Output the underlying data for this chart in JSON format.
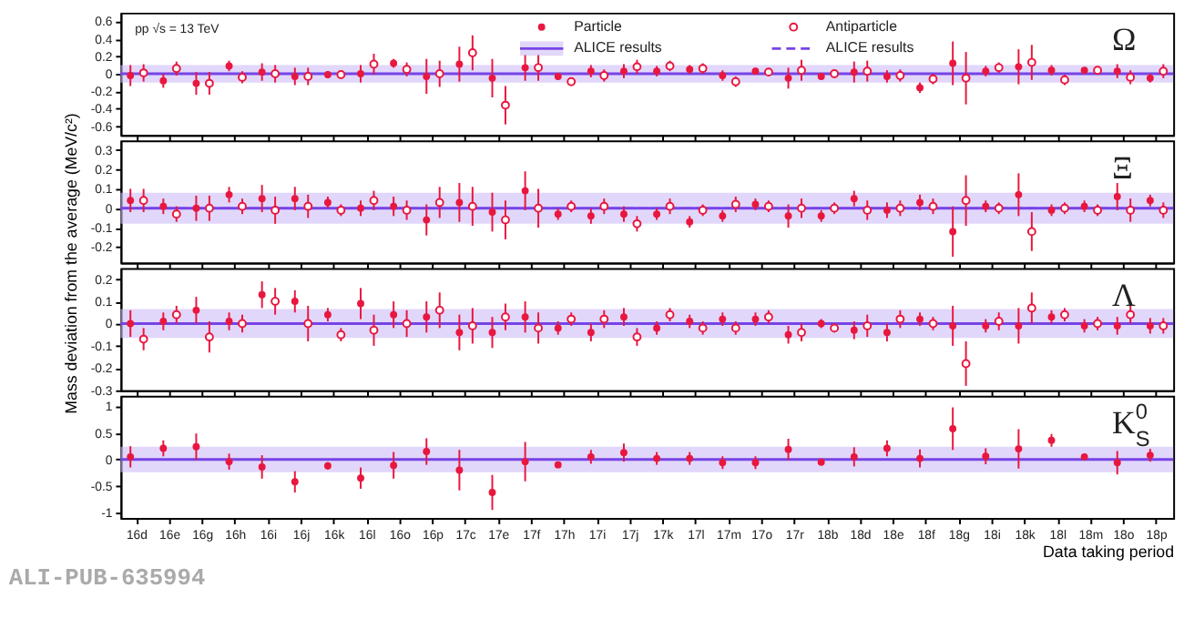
{
  "chart_data": [
    {
      "type": "scatter",
      "title": "Ω",
      "categories": [
        null,
        null,
        null,
        null,
        null,
        null,
        null,
        null,
        null,
        null,
        null,
        null,
        null,
        null,
        null,
        null,
        null,
        null,
        null,
        null,
        null,
        null,
        null,
        null,
        null,
        null,
        null,
        null,
        null,
        null,
        null,
        null
      ],
      "series": [
        {
          "name": "Particle",
          "color": "#e8173f",
          "values": [
            -0.02,
            -0.08,
            -0.11,
            0.09,
            0.02,
            -0.03,
            -0.01,
            0.0,
            0.12,
            -0.03,
            0.11,
            -0.05,
            0.07,
            -0.03,
            0.03,
            0.03,
            0.03,
            0.05,
            -0.02,
            0.03,
            -0.05,
            -0.03,
            0.02,
            -0.03,
            -0.16,
            0.12,
            0.03,
            0.08,
            0.04,
            0.04,
            0.03,
            -0.05
          ],
          "errors": [
            0.12,
            0.08,
            0.13,
            0.06,
            0.1,
            0.1,
            0.04,
            0.1,
            0.05,
            0.2,
            0.2,
            0.22,
            0.15,
            0.04,
            0.07,
            0.08,
            0.06,
            0.05,
            0.06,
            0.04,
            0.12,
            0.04,
            0.12,
            0.07,
            0.06,
            0.25,
            0.06,
            0.2,
            0.06,
            0.03,
            0.08,
            0.05
          ]
        },
        {
          "name": "Antiparticle",
          "color": "#e8173f",
          "values": [
            0.01,
            0.06,
            -0.11,
            -0.04,
            0.0,
            -0.03,
            -0.01,
            0.11,
            0.05,
            0.0,
            0.24,
            -0.36,
            0.07,
            -0.09,
            -0.02,
            0.08,
            0.09,
            0.06,
            -0.09,
            0.02,
            0.04,
            0.0,
            0.03,
            -0.02,
            -0.06,
            -0.05,
            0.07,
            0.13,
            -0.07,
            0.04,
            -0.04,
            0.03
          ],
          "errors": [
            0.1,
            0.08,
            0.13,
            0.07,
            0.1,
            0.1,
            0.04,
            0.12,
            0.08,
            0.15,
            0.2,
            0.22,
            0.15,
            0.04,
            0.07,
            0.08,
            0.06,
            0.06,
            0.06,
            0.04,
            0.12,
            0.04,
            0.12,
            0.07,
            0.06,
            0.3,
            0.06,
            0.2,
            0.06,
            0.03,
            0.08,
            0.08
          ]
        }
      ],
      "ylim": [
        -0.7,
        0.7
      ],
      "yticks": [
        -0.6,
        -0.4,
        -0.2,
        0,
        0.2,
        0.4,
        0.6
      ],
      "ref_lines": [
        {
          "axis": "y",
          "value": 0,
          "label": "ALICE results",
          "color": "#7744e6",
          "line_style": "solid"
        },
        {
          "axis": "y",
          "value": 0,
          "label": "ALICE results",
          "color": "#7744e6",
          "line_style": "dashed"
        }
      ],
      "bands": [
        {
          "axis": "y",
          "from": -0.1,
          "to": 0.1,
          "color": "#cdbdf7"
        }
      ],
      "marker": "circle",
      "legend": "top",
      "tick_labels": "y",
      "annotations": [
        "pp √s = 13 TeV"
      ]
    },
    {
      "type": "scatter",
      "title": "Ξ",
      "categories": [
        null,
        null,
        null,
        null,
        null,
        null,
        null,
        null,
        null,
        null,
        null,
        null,
        null,
        null,
        null,
        null,
        null,
        null,
        null,
        null,
        null,
        null,
        null,
        null,
        null,
        null,
        null,
        null,
        null,
        null,
        null,
        null
      ],
      "series": [
        {
          "color": "#e8173f",
          "values": [
            0.04,
            0.01,
            0.0,
            0.07,
            0.05,
            0.05,
            0.03,
            0.0,
            0.01,
            -0.06,
            0.03,
            -0.02,
            0.09,
            -0.03,
            -0.04,
            -0.03,
            -0.03,
            -0.07,
            -0.04,
            0.02,
            -0.04,
            -0.04,
            0.05,
            -0.01,
            0.03,
            -0.12,
            0.01,
            0.07,
            -0.01,
            0.01,
            0.06,
            0.04
          ],
          "errors": [
            0.06,
            0.04,
            0.065,
            0.04,
            0.07,
            0.06,
            0.03,
            0.04,
            0.05,
            0.08,
            0.1,
            0.1,
            0.1,
            0.03,
            0.04,
            0.04,
            0.03,
            0.03,
            0.03,
            0.03,
            0.06,
            0.03,
            0.04,
            0.04,
            0.04,
            0.13,
            0.03,
            0.11,
            0.03,
            0.03,
            0.07,
            0.03
          ]
        },
        {
          "color": "#e8173f",
          "values": [
            0.04,
            -0.03,
            0.0,
            0.01,
            -0.01,
            0.01,
            -0.01,
            0.04,
            -0.01,
            0.03,
            0.01,
            -0.06,
            0.0,
            0.01,
            0.01,
            -0.08,
            0.01,
            -0.01,
            0.02,
            0.01,
            0.0,
            0.0,
            -0.01,
            0.0,
            0.01,
            0.04,
            0.0,
            -0.12,
            0.0,
            -0.01,
            -0.01,
            -0.01
          ],
          "errors": [
            0.06,
            0.04,
            0.065,
            0.04,
            0.07,
            0.06,
            0.03,
            0.05,
            0.05,
            0.08,
            0.1,
            0.1,
            0.1,
            0.03,
            0.04,
            0.04,
            0.04,
            0.03,
            0.04,
            0.03,
            0.05,
            0.03,
            0.05,
            0.04,
            0.04,
            0.13,
            0.03,
            0.1,
            0.03,
            0.03,
            0.06,
            0.04
          ]
        }
      ],
      "ylim": [
        -0.28,
        0.35
      ],
      "yticks": [
        -0.2,
        -0.1,
        0,
        0.1,
        0.2,
        0.3
      ],
      "ref_lines": [
        {
          "axis": "y",
          "value": 0,
          "color": "#7744e6",
          "line_style": "solid"
        },
        {
          "axis": "y",
          "value": 0,
          "color": "#7744e6",
          "line_style": "dashed"
        }
      ],
      "bands": [
        {
          "axis": "y",
          "from": -0.08,
          "to": 0.08,
          "color": "#cdbdf7"
        }
      ],
      "marker": "circle",
      "tick_labels": "y",
      "ylabel": "Mass deviation from the average (MeV/c²)"
    },
    {
      "type": "scatter",
      "title": "Λ",
      "categories": [
        null,
        null,
        null,
        null,
        null,
        null,
        null,
        null,
        null,
        null,
        null,
        null,
        null,
        null,
        null,
        null,
        null,
        null,
        null,
        null,
        null,
        null,
        null,
        null,
        null,
        null,
        null,
        null,
        null,
        null,
        null,
        null
      ],
      "series": [
        {
          "color": "#e8173f",
          "values": [
            0.0,
            0.01,
            0.06,
            0.01,
            0.13,
            0.1,
            0.04,
            0.09,
            0.04,
            0.03,
            -0.04,
            -0.04,
            0.03,
            -0.02,
            -0.04,
            0.03,
            -0.02,
            0.01,
            0.02,
            0.02,
            -0.05,
            0.0,
            -0.03,
            -0.04,
            0.02,
            -0.01,
            -0.01,
            -0.01,
            0.03,
            -0.01,
            -0.01,
            -0.01
          ],
          "errors": [
            0.06,
            0.04,
            0.06,
            0.04,
            0.06,
            0.05,
            0.03,
            0.07,
            0.06,
            0.07,
            0.08,
            0.07,
            0.07,
            0.03,
            0.04,
            0.04,
            0.03,
            0.03,
            0.03,
            0.03,
            0.04,
            0.02,
            0.04,
            0.04,
            0.03,
            0.09,
            0.03,
            0.08,
            0.03,
            0.03,
            0.04,
            0.035
          ]
        },
        {
          "color": "#e8173f",
          "values": [
            -0.07,
            0.04,
            -0.06,
            0.0,
            0.1,
            0.0,
            -0.05,
            -0.03,
            0.0,
            0.06,
            -0.01,
            0.03,
            -0.02,
            0.02,
            0.02,
            -0.06,
            0.04,
            -0.02,
            -0.02,
            0.03,
            -0.04,
            -0.02,
            -0.01,
            0.02,
            0.0,
            -0.18,
            0.01,
            0.07,
            0.04,
            0.0,
            0.04,
            -0.01
          ],
          "errors": [
            0.05,
            0.04,
            0.07,
            0.04,
            0.06,
            0.08,
            0.03,
            0.07,
            0.06,
            0.08,
            0.08,
            0.06,
            0.07,
            0.03,
            0.04,
            0.04,
            0.03,
            0.03,
            0.03,
            0.03,
            0.04,
            0.02,
            0.05,
            0.04,
            0.03,
            0.1,
            0.04,
            0.07,
            0.03,
            0.03,
            0.04,
            0.035
          ]
        }
      ],
      "ylim": [
        -0.3,
        0.25
      ],
      "yticks": [
        -0.3,
        -0.2,
        -0.1,
        0,
        0.1,
        0.2
      ],
      "ref_lines": [
        {
          "axis": "y",
          "value": 0,
          "color": "#7744e6",
          "line_style": "solid"
        },
        {
          "axis": "y",
          "value": 0,
          "color": "#7744e6",
          "line_style": "dashed"
        }
      ],
      "bands": [
        {
          "axis": "y",
          "from": -0.065,
          "to": 0.065,
          "color": "#cdbdf7"
        }
      ],
      "marker": "circle",
      "tick_labels": "y"
    },
    {
      "type": "scatter",
      "title": "K$^{0}$$_{S}$",
      "categories": [
        "16d",
        "16e",
        "16g",
        "16h",
        "16i",
        "16j",
        "16k",
        "16l",
        "16o",
        "16p",
        "17c",
        "17e",
        "17f",
        "17h",
        "17i",
        "17j",
        "17k",
        "17l",
        "17m",
        "17o",
        "17r",
        "18b",
        "18d",
        "18e",
        "18f",
        "18g",
        "18i",
        "18k",
        "18l",
        "18m",
        "18o",
        "18p"
      ],
      "series": [
        {
          "color": "#e8173f",
          "values": [
            0.05,
            0.21,
            0.24,
            -0.04,
            -0.14,
            -0.42,
            -0.12,
            -0.35,
            -0.11,
            0.15,
            -0.2,
            -0.62,
            -0.04,
            -0.1,
            0.05,
            0.13,
            0.02,
            0.02,
            -0.06,
            -0.06,
            0.19,
            -0.05,
            0.05,
            0.21,
            0.02,
            0.58,
            0.06,
            0.2,
            0.36,
            0.05,
            -0.06,
            0.08
          ],
          "errors": [
            0.2,
            0.15,
            0.25,
            0.15,
            0.22,
            0.2,
            0.07,
            0.2,
            0.25,
            0.25,
            0.38,
            0.33,
            0.37,
            0.06,
            0.13,
            0.17,
            0.12,
            0.12,
            0.12,
            0.12,
            0.2,
            0.05,
            0.18,
            0.15,
            0.17,
            0.4,
            0.15,
            0.37,
            0.12,
            0.06,
            0.22,
            0.12
          ]
        }
      ],
      "ylim": [
        -1.1,
        1.2
      ],
      "yticks": [
        -1,
        -0.5,
        0,
        0.5,
        1
      ],
      "ref_lines": [
        {
          "axis": "y",
          "value": 0,
          "color": "#7744e6",
          "line_style": "solid"
        }
      ],
      "bands": [
        {
          "axis": "y",
          "from": -0.24,
          "to": 0.24,
          "color": "#cdbdf7"
        }
      ],
      "marker": "circle",
      "xlabel": "Data taking period",
      "annotations": [
        "ALI-PUB-635994"
      ]
    }
  ]
}
